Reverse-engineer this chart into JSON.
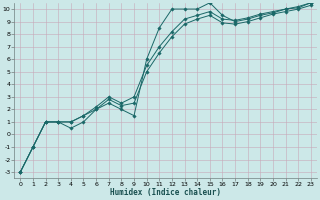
{
  "xlabel": "Humidex (Indice chaleur)",
  "xlim": [
    -0.5,
    23.5
  ],
  "ylim": [
    -3.5,
    10.5
  ],
  "xticks": [
    0,
    1,
    2,
    3,
    4,
    5,
    6,
    7,
    8,
    9,
    10,
    11,
    12,
    13,
    14,
    15,
    16,
    17,
    18,
    19,
    20,
    21,
    22,
    23
  ],
  "yticks": [
    -3,
    -2,
    -1,
    0,
    1,
    2,
    3,
    4,
    5,
    6,
    7,
    8,
    9,
    10
  ],
  "bg_color": "#cce8e8",
  "grid_color_major": "#b8d4d4",
  "grid_color_minor": "#d4b8c0",
  "line_color": "#1a6868",
  "line1_y": [
    -3,
    -1,
    1,
    1,
    0.5,
    1.0,
    2.0,
    2.5,
    2.0,
    1.5,
    6.0,
    8.5,
    10,
    10,
    10,
    10.5,
    9.5,
    9.0,
    9.2,
    9.5,
    9.7,
    10,
    10.1,
    10.5
  ],
  "line2_y": [
    -3,
    -1,
    1,
    1,
    1.0,
    1.5,
    2.2,
    3.0,
    2.5,
    3.0,
    5.5,
    7.0,
    8.2,
    9.2,
    9.5,
    9.8,
    9.2,
    9.1,
    9.3,
    9.6,
    9.8,
    10.0,
    10.2,
    10.5
  ],
  "line3_y": [
    -3,
    -1,
    1,
    1,
    1.0,
    1.5,
    2.0,
    2.8,
    2.3,
    2.5,
    5.0,
    6.5,
    7.8,
    8.8,
    9.2,
    9.5,
    8.9,
    8.8,
    9.0,
    9.3,
    9.6,
    9.8,
    10.0,
    10.3
  ]
}
